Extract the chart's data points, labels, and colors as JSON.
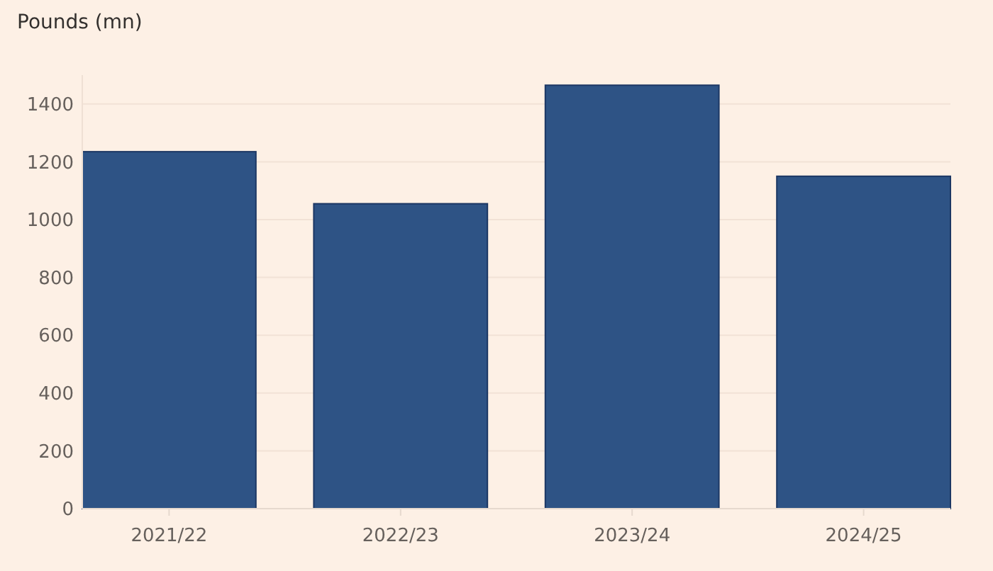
{
  "chart_data": {
    "type": "bar",
    "ylabel": "Pounds (mn)",
    "categories": [
      "2021/22",
      "2022/23",
      "2023/24",
      "2024/25"
    ],
    "values": [
      1235,
      1055,
      1465,
      1150
    ],
    "color": "#2e5385",
    "ylim": [
      0,
      1500
    ],
    "yticks": [
      0,
      200,
      400,
      600,
      800,
      1000,
      1200,
      1400
    ],
    "grid": "y"
  }
}
